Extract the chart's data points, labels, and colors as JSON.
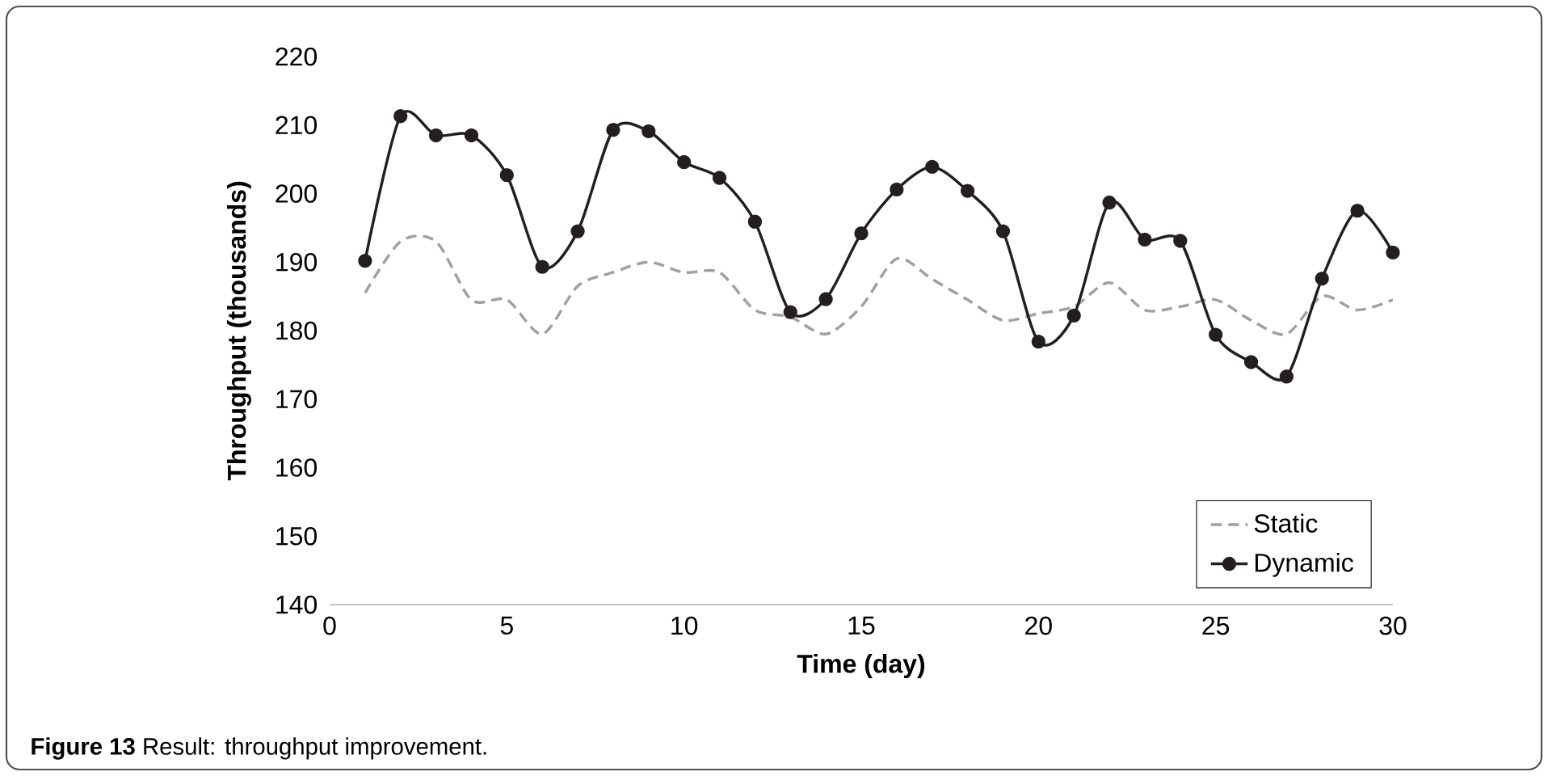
{
  "chart_data": {
    "type": "line",
    "xlabel": "Time (day)",
    "ylabel": "Throughput (thousands)",
    "annotations": [
      "**Figure 13** Result: throughput improvement."
    ],
    "x": [
      1,
      2,
      3,
      4,
      5,
      6,
      7,
      8,
      9,
      10,
      11,
      12,
      13,
      14,
      15,
      16,
      17,
      18,
      19,
      20,
      21,
      22,
      23,
      24,
      25,
      26,
      27,
      28,
      29,
      30
    ],
    "series": [
      {
        "name": "Static",
        "color": "#a0a0a0",
        "line_style": "dashed",
        "marker": "none",
        "values": [
          185.5,
          193,
          193,
          184.5,
          184.5,
          179.5,
          186.5,
          188.5,
          190,
          188.5,
          188.5,
          183,
          182,
          179.5,
          183.5,
          190.5,
          187.5,
          184.5,
          181.5,
          182.5,
          183.5,
          187,
          183,
          183.5,
          184.5,
          181.5,
          179.5,
          185,
          183,
          184.5
        ]
      },
      {
        "name": "Dynamic",
        "color": "#231f20",
        "line_style": "solid",
        "marker": "circle",
        "values": [
          190.2,
          211.3,
          208.5,
          208.5,
          202.7,
          189.3,
          194.5,
          209.3,
          209.1,
          204.6,
          202.3,
          195.9,
          182.7,
          184.6,
          194.2,
          200.6,
          203.9,
          200.4,
          194.5,
          178.4,
          182.2,
          198.7,
          193.3,
          193.1,
          179.4,
          175.4,
          173.3,
          187.6,
          197.5,
          191.4
        ]
      }
    ],
    "xlim": [
      0,
      30
    ],
    "xticks": [
      0,
      5,
      10,
      15,
      20,
      25,
      30
    ],
    "ylim": [
      140,
      220
    ],
    "yticks": [
      140,
      150,
      160,
      170,
      180,
      190,
      200,
      210,
      220
    ],
    "grid": false,
    "legend": "bottom right"
  }
}
